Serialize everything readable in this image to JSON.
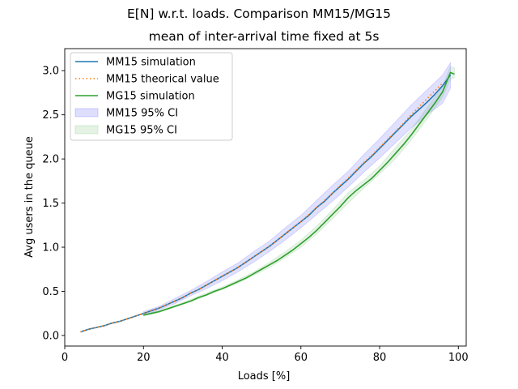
{
  "chart_data": {
    "type": "line",
    "suptitle": "E[N] w.r.t. loads. Comparison MM15/MG15",
    "title": "mean of inter-arrival time fixed at 5s",
    "xlabel": "Loads [%]",
    "ylabel": "Avg users in the queue",
    "xlim": [
      0,
      102
    ],
    "ylim": [
      -0.12,
      3.25
    ],
    "xticks": [
      0,
      20,
      40,
      60,
      80,
      100
    ],
    "yticks": [
      0.0,
      0.5,
      1.0,
      1.5,
      2.0,
      2.5,
      3.0
    ],
    "xtick_labels": [
      "0",
      "20",
      "40",
      "60",
      "80",
      "100"
    ],
    "ytick_labels": [
      "0.0",
      "0.5",
      "1.0",
      "1.5",
      "2.0",
      "2.5",
      "3.0"
    ],
    "grid": false,
    "legend_position": "upper-left",
    "legend": [
      {
        "label": "MM15 simulation",
        "kind": "line",
        "color": "#1f77b4"
      },
      {
        "label": "MM15 theorical value",
        "kind": "dotted",
        "color": "#ff7f0e"
      },
      {
        "label": "MG15 simulation",
        "kind": "line",
        "color": "#2ca02c"
      },
      {
        "label": "MM15 95% CI",
        "kind": "band",
        "color": "#0000ff"
      },
      {
        "label": "MG15 95% CI",
        "kind": "band",
        "color": "#2ca02c"
      }
    ],
    "series": [
      {
        "name": "MM15 simulation",
        "color": "#1f77b4",
        "x": [
          4,
          6,
          8,
          10,
          12,
          14,
          16,
          18,
          20,
          22,
          24,
          26,
          28,
          30,
          32,
          34,
          36,
          38,
          40,
          42,
          44,
          46,
          48,
          50,
          52,
          54,
          56,
          58,
          60,
          62,
          64,
          66,
          68,
          70,
          72,
          74,
          76,
          78,
          80,
          82,
          84,
          86,
          88,
          90,
          92,
          94,
          96,
          98
        ],
        "y": [
          0.04,
          0.07,
          0.09,
          0.11,
          0.14,
          0.16,
          0.19,
          0.22,
          0.25,
          0.28,
          0.31,
          0.35,
          0.39,
          0.43,
          0.48,
          0.52,
          0.57,
          0.62,
          0.67,
          0.72,
          0.77,
          0.83,
          0.89,
          0.95,
          1.01,
          1.08,
          1.15,
          1.22,
          1.29,
          1.36,
          1.45,
          1.52,
          1.61,
          1.69,
          1.77,
          1.86,
          1.95,
          2.03,
          2.12,
          2.21,
          2.3,
          2.39,
          2.48,
          2.56,
          2.64,
          2.73,
          2.83,
          2.95
        ]
      },
      {
        "name": "MM15 theorical value",
        "color": "#ff7f0e",
        "x": [
          4,
          6,
          8,
          10,
          12,
          14,
          16,
          18,
          20,
          22,
          24,
          26,
          28,
          30,
          32,
          34,
          36,
          38,
          40,
          42,
          44,
          46,
          48,
          50,
          52,
          54,
          56,
          58,
          60,
          62,
          64,
          66,
          68,
          70,
          72,
          74,
          76,
          78,
          80,
          82,
          84,
          86,
          88,
          90,
          92,
          94,
          96
        ],
        "y": [
          0.04,
          0.07,
          0.09,
          0.11,
          0.14,
          0.16,
          0.19,
          0.22,
          0.25,
          0.28,
          0.31,
          0.35,
          0.39,
          0.43,
          0.48,
          0.52,
          0.57,
          0.62,
          0.67,
          0.72,
          0.77,
          0.83,
          0.89,
          0.95,
          1.01,
          1.08,
          1.15,
          1.22,
          1.29,
          1.37,
          1.45,
          1.53,
          1.61,
          1.7,
          1.78,
          1.87,
          1.96,
          2.04,
          2.13,
          2.22,
          2.31,
          2.4,
          2.5,
          2.59,
          2.68,
          2.77,
          2.86
        ]
      },
      {
        "name": "MG15 simulation",
        "color": "#2ca02c",
        "x": [
          20,
          22,
          24,
          26,
          28,
          30,
          32,
          34,
          36,
          38,
          40,
          42,
          44,
          46,
          48,
          50,
          52,
          54,
          56,
          58,
          60,
          62,
          64,
          66,
          68,
          70,
          72,
          74,
          76,
          78,
          80,
          82,
          84,
          86,
          88,
          90,
          92,
          94,
          96,
          98,
          99
        ],
        "y": [
          0.23,
          0.25,
          0.27,
          0.3,
          0.33,
          0.36,
          0.39,
          0.43,
          0.46,
          0.5,
          0.53,
          0.57,
          0.61,
          0.65,
          0.7,
          0.75,
          0.8,
          0.85,
          0.91,
          0.97,
          1.04,
          1.11,
          1.19,
          1.28,
          1.37,
          1.46,
          1.56,
          1.64,
          1.71,
          1.78,
          1.87,
          1.96,
          2.06,
          2.16,
          2.27,
          2.39,
          2.51,
          2.63,
          2.76,
          2.98,
          2.96
        ]
      }
    ],
    "bands": [
      {
        "name": "MM15 95% CI",
        "color": "#0000ff",
        "opacity": 0.12,
        "x": [
          20,
          24,
          28,
          32,
          36,
          40,
          44,
          48,
          52,
          56,
          60,
          64,
          68,
          72,
          76,
          80,
          84,
          88,
          92,
          96,
          98
        ],
        "low": [
          0.23,
          0.29,
          0.36,
          0.45,
          0.53,
          0.62,
          0.72,
          0.83,
          0.95,
          1.08,
          1.22,
          1.37,
          1.52,
          1.68,
          1.85,
          2.01,
          2.18,
          2.35,
          2.5,
          2.63,
          2.8
        ],
        "high": [
          0.27,
          0.33,
          0.42,
          0.51,
          0.61,
          0.72,
          0.82,
          0.95,
          1.07,
          1.22,
          1.36,
          1.53,
          1.7,
          1.86,
          2.05,
          2.23,
          2.42,
          2.61,
          2.78,
          2.95,
          3.09
        ]
      },
      {
        "name": "MG15 95% CI",
        "color": "#2ca02c",
        "opacity": 0.12,
        "x": [
          20,
          24,
          28,
          32,
          36,
          40,
          44,
          48,
          52,
          56,
          60,
          64,
          68,
          72,
          76,
          80,
          84,
          88,
          92,
          96,
          98,
          99
        ],
        "low": [
          0.22,
          0.26,
          0.32,
          0.38,
          0.45,
          0.52,
          0.59,
          0.68,
          0.77,
          0.88,
          1.0,
          1.15,
          1.32,
          1.5,
          1.67,
          1.83,
          2.0,
          2.21,
          2.45,
          2.7,
          2.9,
          2.92
        ],
        "high": [
          0.24,
          0.28,
          0.34,
          0.41,
          0.48,
          0.55,
          0.63,
          0.72,
          0.83,
          0.95,
          1.08,
          1.24,
          1.42,
          1.62,
          1.76,
          1.92,
          2.13,
          2.33,
          2.58,
          2.82,
          3.05,
          3.03
        ]
      }
    ]
  }
}
